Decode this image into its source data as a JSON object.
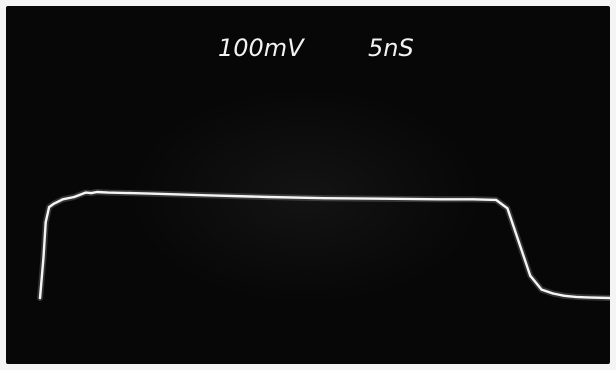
{
  "readouts": {
    "volts_per_div": "100mV",
    "time_per_div": "5nS"
  },
  "colors": {
    "screen": "#070707",
    "trace": "#f5f5f5",
    "text": "#f2f2f2"
  },
  "chart_data": {
    "type": "line",
    "title": "",
    "xlabel": "",
    "ylabel": "",
    "grid": false,
    "xlim": [
      0,
      50
    ],
    "ylim": [
      -1.5,
      1.5
    ],
    "series": [
      {
        "x": [
          0.0,
          0.3,
          0.5,
          0.8,
          1.2,
          2.0,
          3.0,
          4.0,
          4.5,
          5.0,
          6.0,
          8.0,
          10.0,
          15.0,
          20.0,
          25.0,
          30.0,
          35.0,
          38.0,
          40.0,
          41.0,
          42.0,
          43.0,
          44.0,
          45.0,
          46.0,
          47.0,
          48.0,
          50.0
        ],
        "y": [
          -0.9,
          -0.2,
          0.45,
          0.72,
          0.78,
          0.86,
          0.9,
          0.98,
          0.97,
          0.99,
          0.98,
          0.97,
          0.96,
          0.93,
          0.9,
          0.88,
          0.87,
          0.86,
          0.86,
          0.85,
          0.7,
          0.1,
          -0.5,
          -0.75,
          -0.82,
          -0.86,
          -0.88,
          -0.89,
          -0.9
        ]
      }
    ]
  }
}
